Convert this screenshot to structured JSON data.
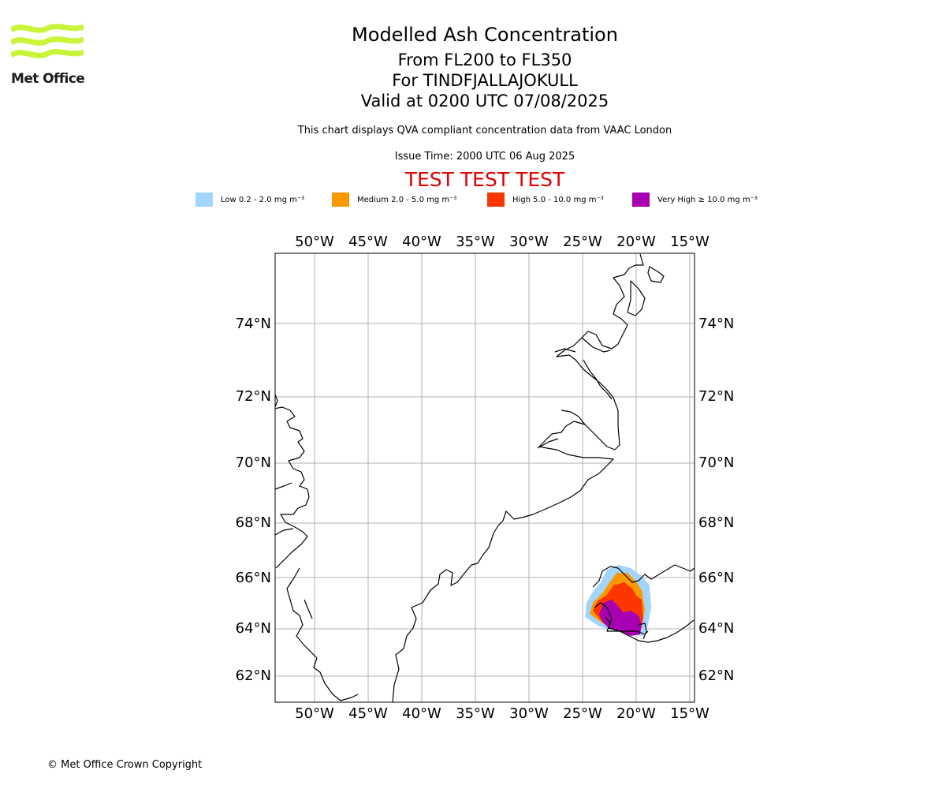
{
  "logo": {
    "text": "Met Office"
  },
  "title": {
    "line1": "Modelled Ash Concentration",
    "line2": "From FL200 to FL350",
    "line3": "For TINDFJALLAJOKULL",
    "line4": "Valid at 0200 UTC 07/08/2025",
    "info": "This chart displays QVA compliant concentration data from VAAC London",
    "issue_time": "Issue Time: 2000 UTC 06 Aug 2025",
    "test_banner": "TEST TEST TEST"
  },
  "legend": [
    {
      "label": "Low 0.2 - 2.0 mg m⁻³",
      "color": "#a3d4fd"
    },
    {
      "label": "Medium 2.0 - 5.0 mg m⁻³",
      "color": "#fc9900"
    },
    {
      "label": "High 5.0 - 10.0 mg m⁻³",
      "color": "#fd3500"
    },
    {
      "label": "Very High ≥ 10.0 mg m⁻³",
      "color": "#a800b0"
    }
  ],
  "map": {
    "lon_labels": [
      "50°W",
      "45°W",
      "40°W",
      "35°W",
      "30°W",
      "25°W",
      "20°W",
      "15°W"
    ],
    "lat_labels": [
      "74°N",
      "72°N",
      "70°N",
      "68°N",
      "66°N",
      "64°N",
      "62°N"
    ],
    "gridlines": true
  },
  "footer": "© Met Office Crown Copyright"
}
